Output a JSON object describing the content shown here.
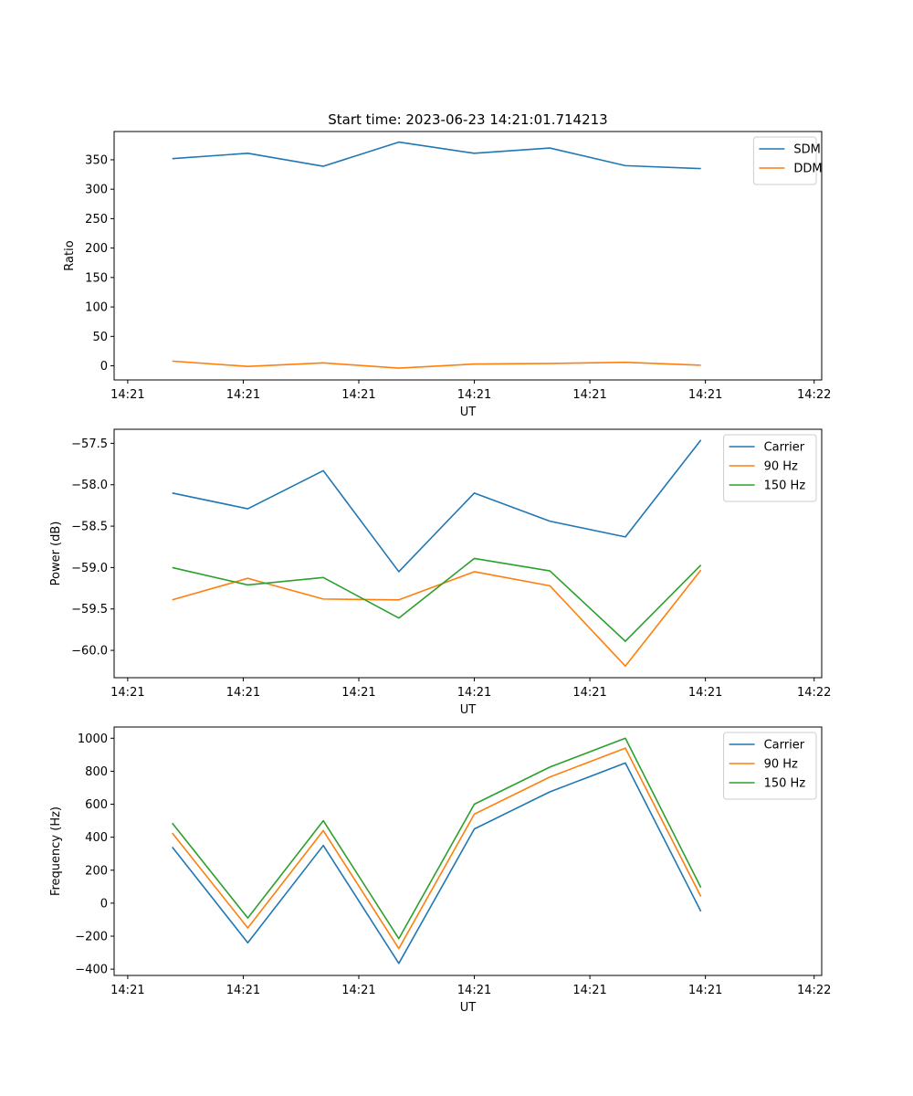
{
  "figure": {
    "title": "Start time: 2023-06-23 14:21:01.714213"
  },
  "colors": {
    "blue": "#1f77b4",
    "orange": "#ff7f0e",
    "green": "#2ca02c"
  },
  "chart_data": [
    {
      "type": "line",
      "title": "Start time: 2023-06-23 14:21:01.714213",
      "xlabel": "UT",
      "ylabel": "Ratio",
      "x_tick_labels": [
        "14:21",
        "14:21",
        "14:21",
        "14:21",
        "14:21",
        "14:21",
        "14:22"
      ],
      "y_ticks": [
        0,
        50,
        100,
        150,
        200,
        250,
        300,
        350
      ],
      "ylim": [
        -24,
        398
      ],
      "legend": "top-right",
      "grid": false,
      "series": [
        {
          "name": "SDM",
          "color": "#1f77b4",
          "values": [
            352,
            361,
            339,
            380,
            361,
            370,
            340,
            335
          ]
        },
        {
          "name": "DDM",
          "color": "#ff7f0e",
          "values": [
            8,
            -1,
            5,
            -4,
            3,
            4,
            6,
            1
          ]
        }
      ]
    },
    {
      "type": "line",
      "title": "",
      "xlabel": "UT",
      "ylabel": "Power (dB)",
      "x_tick_labels": [
        "14:21",
        "14:21",
        "14:21",
        "14:21",
        "14:21",
        "14:21",
        "14:22"
      ],
      "y_ticks": [
        -60.0,
        -59.5,
        -59.0,
        -58.5,
        -58.0,
        -57.5
      ],
      "y_tick_labels": [
        "−60.0",
        "−59.5",
        "−59.0",
        "−58.5",
        "−58.0",
        "−57.5"
      ],
      "ylim": [
        -60.33,
        -57.33
      ],
      "legend": "top-right",
      "grid": false,
      "series": [
        {
          "name": "Carrier",
          "color": "#1f77b4",
          "values": [
            -58.1,
            -58.29,
            -57.83,
            -59.05,
            -58.1,
            -58.44,
            -58.63,
            -57.46
          ]
        },
        {
          "name": "90 Hz",
          "color": "#ff7f0e",
          "values": [
            -59.39,
            -59.13,
            -59.38,
            -59.39,
            -59.05,
            -59.22,
            -60.19,
            -59.03
          ]
        },
        {
          "name": "150 Hz",
          "color": "#2ca02c",
          "values": [
            -59.0,
            -59.21,
            -59.12,
            -59.61,
            -58.89,
            -59.04,
            -59.89,
            -58.97
          ]
        }
      ]
    },
    {
      "type": "line",
      "title": "",
      "xlabel": "UT",
      "ylabel": "Frequency (Hz)",
      "x_tick_labels": [
        "14:21",
        "14:21",
        "14:21",
        "14:21",
        "14:21",
        "14:21",
        "14:22"
      ],
      "y_ticks": [
        -400,
        -200,
        0,
        200,
        400,
        600,
        800,
        1000
      ],
      "y_tick_labels": [
        "−400",
        "−200",
        "0",
        "200",
        "400",
        "600",
        "800",
        "1000"
      ],
      "ylim": [
        -438,
        1068
      ],
      "legend": "top-right",
      "grid": false,
      "series": [
        {
          "name": "Carrier",
          "color": "#1f77b4",
          "values": [
            340,
            -240,
            350,
            -365,
            450,
            675,
            850,
            -50
          ]
        },
        {
          "name": "90 Hz",
          "color": "#ff7f0e",
          "values": [
            425,
            -150,
            440,
            -275,
            540,
            765,
            940,
            40
          ]
        },
        {
          "name": "150 Hz",
          "color": "#2ca02c",
          "values": [
            485,
            -90,
            500,
            -215,
            600,
            825,
            1000,
            95
          ]
        }
      ]
    }
  ]
}
